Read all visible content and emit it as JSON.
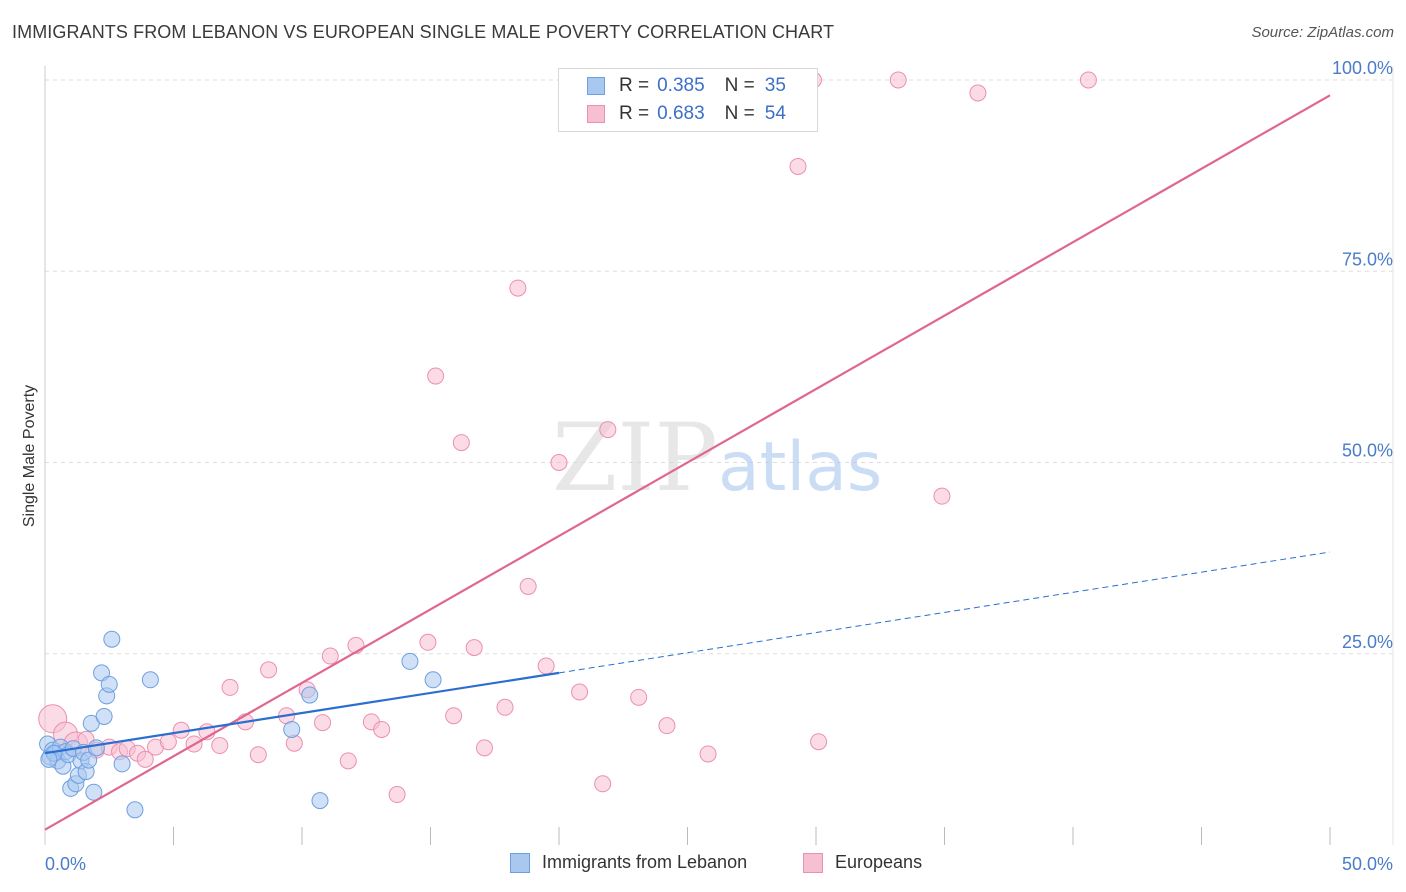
{
  "title": "IMMIGRANTS FROM LEBANON VS EUROPEAN SINGLE MALE POVERTY CORRELATION CHART",
  "source": "Source: ZipAtlas.com",
  "watermark": {
    "zip": "ZIP",
    "atlas": "atlas"
  },
  "colors": {
    "blue_fill": "#a9c8f0",
    "blue_stroke": "#6e9fe0",
    "blue_line": "#2a6fcf",
    "pink_fill": "#f7bfd2",
    "pink_stroke": "#ec8fb0",
    "pink_line": "#e0668f",
    "tick_text": "#4a7cc9",
    "grid": "#dddddd"
  },
  "legend_top": {
    "rows": [
      {
        "r_label": "R =",
        "r_value": "0.385",
        "n_label": "N =",
        "n_value": "35"
      },
      {
        "r_label": "R =",
        "r_value": "0.683",
        "n_label": "N =",
        "n_value": "54"
      }
    ]
  },
  "legend_bottom": {
    "items": [
      {
        "label": "Immigrants from Lebanon"
      },
      {
        "label": "Europeans"
      }
    ]
  },
  "chart_data": {
    "type": "scatter",
    "ylabel": "Single Male Poverty",
    "xlabel": "",
    "xlim": [
      0,
      50
    ],
    "ylim": [
      0,
      100
    ],
    "y_ticks": [
      {
        "value": 25,
        "label": "25.0%"
      },
      {
        "value": 50,
        "label": "50.0%"
      },
      {
        "value": 75,
        "label": "75.0%"
      },
      {
        "value": 100,
        "label": "100.0%"
      }
    ],
    "x_tick_labels": [
      {
        "value": 0,
        "label": "0.0%"
      },
      {
        "value": 50,
        "label": "50.0%"
      }
    ],
    "x_minor_ticks": [
      5,
      10,
      15,
      20,
      25,
      30,
      35,
      40,
      45,
      50
    ],
    "grid": true,
    "legend_position": "top-center",
    "series": [
      {
        "name": "Immigrants from Lebanon",
        "r": 0.385,
        "n": 35,
        "color": "blue",
        "points": [
          [
            0.1,
            13.2
          ],
          [
            0.2,
            11.5
          ],
          [
            0.3,
            12.4
          ],
          [
            0.4,
            12.0
          ],
          [
            0.5,
            11.0
          ],
          [
            0.6,
            12.8
          ],
          [
            0.7,
            10.3
          ],
          [
            0.8,
            12.2
          ],
          [
            0.9,
            11.8
          ],
          [
            1.0,
            7.4
          ],
          [
            1.1,
            12.6
          ],
          [
            1.2,
            8.0
          ],
          [
            1.3,
            9.1
          ],
          [
            1.4,
            11.0
          ],
          [
            1.5,
            12.1
          ],
          [
            1.6,
            9.6
          ],
          [
            1.7,
            11.1
          ],
          [
            1.8,
            15.9
          ],
          [
            1.9,
            6.9
          ],
          [
            2.0,
            12.7
          ],
          [
            2.2,
            22.5
          ],
          [
            2.3,
            16.8
          ],
          [
            2.4,
            19.5
          ],
          [
            2.5,
            21.0
          ],
          [
            2.6,
            26.9
          ],
          [
            3.0,
            10.6
          ],
          [
            3.5,
            4.6
          ],
          [
            4.1,
            21.6
          ],
          [
            9.6,
            15.1
          ],
          [
            10.3,
            19.6
          ],
          [
            10.7,
            5.8
          ],
          [
            14.2,
            24.0
          ],
          [
            15.1,
            21.6
          ],
          [
            0.35,
            12.0
          ],
          [
            0.15,
            11.2
          ]
        ],
        "trend": {
          "x0": 0,
          "y0": 12.0,
          "x1": 20,
          "y1": 22.5,
          "dashed_to_x": 50,
          "dashed_to_y": 38.3
        }
      },
      {
        "name": "Europeans",
        "r": 0.683,
        "n": 54,
        "color": "pink",
        "points": [
          [
            0.3,
            16.5
          ],
          [
            0.8,
            14.5
          ],
          [
            1.2,
            13.2
          ],
          [
            1.6,
            13.8
          ],
          [
            2.0,
            12.4
          ],
          [
            2.5,
            12.8
          ],
          [
            2.9,
            12.2
          ],
          [
            3.2,
            12.6
          ],
          [
            3.6,
            12.0
          ],
          [
            3.9,
            11.2
          ],
          [
            4.3,
            12.8
          ],
          [
            4.8,
            13.5
          ],
          [
            5.3,
            15.0
          ],
          [
            5.8,
            13.2
          ],
          [
            6.3,
            14.8
          ],
          [
            6.8,
            13.0
          ],
          [
            7.2,
            20.6
          ],
          [
            7.8,
            16.1
          ],
          [
            8.3,
            11.8
          ],
          [
            8.7,
            22.9
          ],
          [
            9.4,
            16.9
          ],
          [
            9.7,
            13.3
          ],
          [
            10.2,
            20.3
          ],
          [
            10.8,
            16.0
          ],
          [
            11.1,
            24.7
          ],
          [
            11.8,
            11.0
          ],
          [
            12.1,
            26.1
          ],
          [
            12.7,
            16.1
          ],
          [
            13.1,
            15.1
          ],
          [
            13.7,
            6.6
          ],
          [
            14.9,
            26.5
          ],
          [
            15.2,
            61.3
          ],
          [
            15.9,
            16.9
          ],
          [
            16.2,
            52.6
          ],
          [
            16.7,
            25.8
          ],
          [
            17.1,
            12.7
          ],
          [
            17.9,
            18.0
          ],
          [
            18.4,
            72.8
          ],
          [
            18.8,
            33.8
          ],
          [
            19.5,
            23.4
          ],
          [
            20.0,
            50.0
          ],
          [
            20.8,
            20.0
          ],
          [
            21.7,
            8.0
          ],
          [
            21.9,
            54.3
          ],
          [
            23.1,
            19.3
          ],
          [
            24.2,
            15.6
          ],
          [
            25.8,
            11.9
          ],
          [
            29.3,
            88.7
          ],
          [
            29.9,
            100.0
          ],
          [
            30.1,
            13.5
          ],
          [
            33.2,
            100.0
          ],
          [
            34.9,
            45.6
          ],
          [
            36.3,
            98.3
          ],
          [
            40.6,
            100.0
          ]
        ],
        "trend": {
          "x0": 0,
          "y0": 2.0,
          "x1": 50,
          "y1": 98.0
        }
      }
    ]
  }
}
